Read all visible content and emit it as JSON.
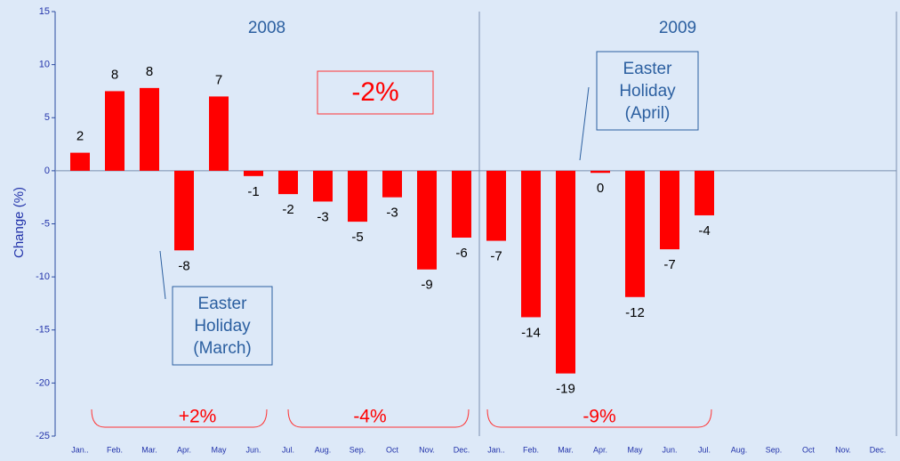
{
  "chart_data": {
    "type": "bar",
    "y_label": "Change (%)",
    "categories": [
      "Jan..",
      "Feb.",
      "Mar.",
      "Apr.",
      "May",
      "Jun.",
      "Jul.",
      "Aug.",
      "Sep.",
      "Oct",
      "Nov.",
      "Dec.",
      "Jan..",
      "Feb.",
      "Mar.",
      "Apr.",
      "May",
      "Jun.",
      "Jul.",
      "Aug.",
      "Sep.",
      "Oct",
      "Nov.",
      "Dec."
    ],
    "values": [
      1.7,
      7.5,
      7.8,
      -7.5,
      7.0,
      -0.5,
      -2.2,
      -2.9,
      -4.8,
      -2.5,
      -9.3,
      -6.3,
      -6.6,
      -13.8,
      -19.1,
      -0.2,
      -11.9,
      -7.4,
      -4.2,
      null,
      null,
      null,
      null,
      null
    ],
    "value_labels": [
      "2",
      "8",
      "8",
      "-8",
      "7",
      "-1",
      "-2",
      "-3",
      "-5",
      "-3",
      "-9",
      "-6",
      "-7",
      "-14",
      "-19",
      "0",
      "-12",
      "-7",
      "-4",
      null,
      null,
      null,
      null,
      null
    ],
    "color": "#ff0000",
    "ylim": [
      -25,
      15
    ],
    "yticks": [
      15,
      10,
      5,
      0,
      -5,
      -10,
      -15,
      -20,
      -25
    ],
    "years": [
      "2008",
      "2009"
    ],
    "annotations": {
      "total": "-2%",
      "easter_march": [
        "Easter",
        "Holiday",
        "(March)"
      ],
      "easter_april": [
        "Easter",
        "Holiday",
        "(April)"
      ],
      "h1_2008": "+2%",
      "h2_2008": "-4%",
      "h1_2009": "-9%"
    }
  }
}
